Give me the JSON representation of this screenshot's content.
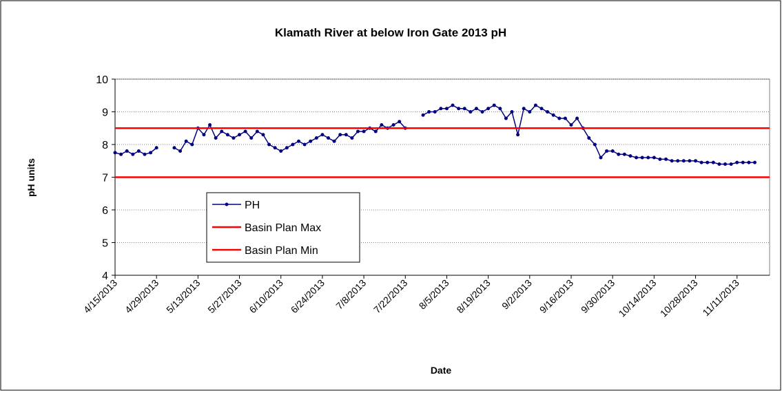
{
  "chart_data": {
    "type": "line",
    "title": "Klamath River at below Iron Gate 2013 pH",
    "x_label": "Date",
    "y_label": "pH units",
    "xlim": [
      "4/15/2013",
      "11/22/2013"
    ],
    "xticks": [
      "4/15/2013",
      "4/29/2013",
      "5/13/2013",
      "5/27/2013",
      "6/10/2013",
      "6/24/2013",
      "7/8/2013",
      "7/22/2013",
      "8/5/2013",
      "8/19/2013",
      "9/2/2013",
      "9/16/2013",
      "9/30/2013",
      "10/14/2013",
      "10/28/2013",
      "11/11/2013"
    ],
    "ylim": [
      4,
      10
    ],
    "yticks": [
      4,
      5,
      6,
      7,
      8,
      9,
      10
    ],
    "grid": true,
    "legend": "lower left",
    "series": [
      {
        "name": "PH",
        "color": "#000080",
        "markers": true,
        "x": [
          "4/15/2013",
          "4/17/2013",
          "4/19/2013",
          "4/21/2013",
          "4/23/2013",
          "4/25/2013",
          "4/27/2013",
          "4/29/2013",
          "5/1/2013",
          "5/3/2013",
          "5/5/2013",
          "5/7/2013",
          "5/9/2013",
          "5/11/2013",
          "5/13/2013",
          "5/15/2013",
          "5/17/2013",
          "5/19/2013",
          "5/21/2013",
          "5/23/2013",
          "5/25/2013",
          "5/27/2013",
          "5/29/2013",
          "5/31/2013",
          "6/2/2013",
          "6/4/2013",
          "6/6/2013",
          "6/8/2013",
          "6/10/2013",
          "6/12/2013",
          "6/14/2013",
          "6/16/2013",
          "6/18/2013",
          "6/20/2013",
          "6/22/2013",
          "6/24/2013",
          "6/26/2013",
          "6/28/2013",
          "6/30/2013",
          "7/2/2013",
          "7/4/2013",
          "7/6/2013",
          "7/8/2013",
          "7/10/2013",
          "7/12/2013",
          "7/14/2013",
          "7/16/2013",
          "7/18/2013",
          "7/20/2013",
          "7/22/2013",
          "7/24/2013",
          "7/26/2013",
          "7/28/2013",
          "7/30/2013",
          "8/1/2013",
          "8/3/2013",
          "8/5/2013",
          "8/7/2013",
          "8/9/2013",
          "8/11/2013",
          "8/13/2013",
          "8/15/2013",
          "8/17/2013",
          "8/19/2013",
          "8/21/2013",
          "8/23/2013",
          "8/25/2013",
          "8/27/2013",
          "8/29/2013",
          "8/31/2013",
          "9/2/2013",
          "9/4/2013",
          "9/6/2013",
          "9/8/2013",
          "9/10/2013",
          "9/12/2013",
          "9/14/2013",
          "9/16/2013",
          "9/18/2013",
          "9/20/2013",
          "9/22/2013",
          "9/24/2013",
          "9/26/2013",
          "9/28/2013",
          "9/30/2013",
          "10/2/2013",
          "10/4/2013",
          "10/6/2013",
          "10/8/2013",
          "10/10/2013",
          "10/12/2013",
          "10/14/2013",
          "10/16/2013",
          "10/18/2013",
          "10/20/2013",
          "10/22/2013",
          "10/24/2013",
          "10/26/2013",
          "10/28/2013",
          "10/30/2013",
          "11/1/2013",
          "11/3/2013",
          "11/5/2013",
          "11/7/2013",
          "11/9/2013",
          "11/11/2013",
          "11/13/2013",
          "11/15/2013",
          "11/17/2013"
        ],
        "values": [
          7.75,
          7.7,
          7.8,
          7.7,
          7.8,
          7.7,
          7.75,
          7.9,
          null,
          null,
          7.9,
          7.8,
          8.1,
          8.0,
          8.5,
          8.3,
          8.6,
          8.2,
          8.4,
          8.3,
          8.2,
          8.3,
          8.4,
          8.2,
          8.4,
          8.3,
          8.0,
          7.9,
          7.8,
          7.9,
          8.0,
          8.1,
          8.0,
          8.1,
          8.2,
          8.3,
          8.2,
          8.1,
          8.3,
          8.3,
          8.2,
          8.4,
          8.4,
          8.5,
          8.4,
          8.6,
          8.5,
          8.6,
          8.7,
          8.5,
          null,
          null,
          8.9,
          9.0,
          9.0,
          9.1,
          9.1,
          9.2,
          9.1,
          9.1,
          9.0,
          9.1,
          9.0,
          9.1,
          9.2,
          9.1,
          8.8,
          9.0,
          8.3,
          9.1,
          9.0,
          9.2,
          9.1,
          9.0,
          8.9,
          8.8,
          8.8,
          8.6,
          8.8,
          8.5,
          8.2,
          8.0,
          7.6,
          7.8,
          7.8,
          7.7,
          7.7,
          7.65,
          7.6,
          7.6,
          7.6,
          7.6,
          7.55,
          7.55,
          7.5,
          7.5,
          7.5,
          7.5,
          7.5,
          7.45,
          7.45,
          7.45,
          7.4,
          7.4,
          7.4,
          7.45,
          7.45,
          7.45,
          7.45
        ]
      },
      {
        "name": "Basin Plan Max",
        "color": "#ff0000",
        "markers": false,
        "x": [
          "4/15/2013",
          "11/22/2013"
        ],
        "values": [
          8.5,
          8.5
        ]
      },
      {
        "name": "Basin Plan Min",
        "color": "#ff0000",
        "markers": false,
        "x": [
          "4/15/2013",
          "11/22/2013"
        ],
        "values": [
          7,
          7
        ]
      }
    ]
  }
}
